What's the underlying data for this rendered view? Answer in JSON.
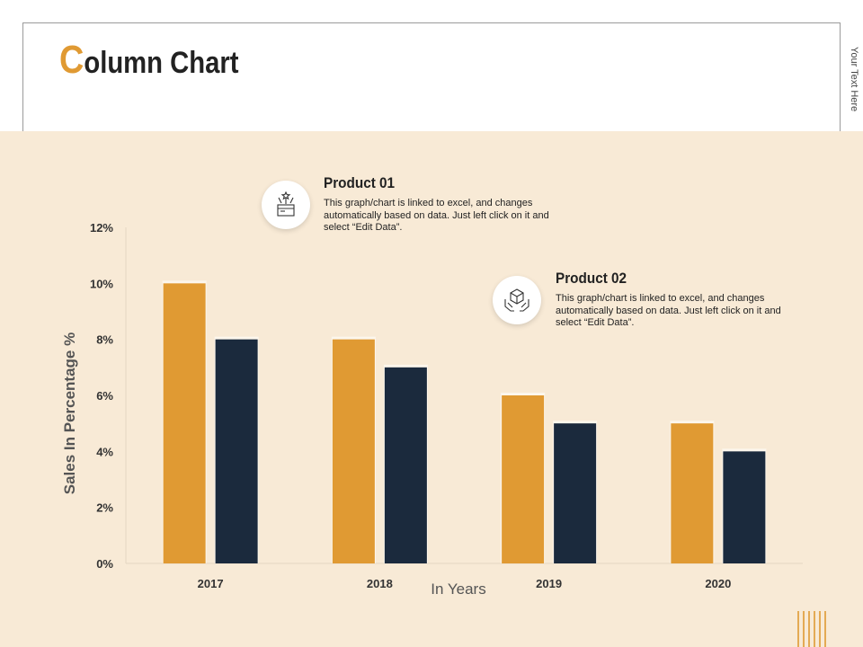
{
  "slide": {
    "title_first_letter": "C",
    "title_rest": "olumn Chart",
    "side_text": "Your Text Here"
  },
  "callouts": [
    {
      "title": "Product 01",
      "text": "This graph/chart is linked to excel, and changes automatically based on data. Just left click on it and select “Edit Data”.",
      "icon": "fireworks-box-icon"
    },
    {
      "title": "Product 02",
      "text": "This graph/chart is linked to excel, and changes automatically based on data. Just left click on it and select “Edit Data”.",
      "icon": "hands-box-icon"
    }
  ],
  "colors": {
    "accent": "#e09a33",
    "dark": "#1b2a3d",
    "band": "#f8ead6"
  },
  "chart_data": {
    "type": "bar",
    "categories": [
      "2017",
      "2018",
      "2019",
      "2020"
    ],
    "series": [
      {
        "values": [
          10,
          8,
          6,
          5
        ],
        "color": "#e09a33"
      },
      {
        "values": [
          8,
          7,
          5,
          4
        ],
        "color": "#1b2a3d"
      }
    ],
    "ylim": [
      0,
      12
    ],
    "yticks": [
      0,
      2,
      4,
      6,
      8,
      10,
      12
    ],
    "ytick_suffix": "%",
    "xlabel": "In Years",
    "ylabel": "Sales In Percentage %",
    "grid": false
  }
}
